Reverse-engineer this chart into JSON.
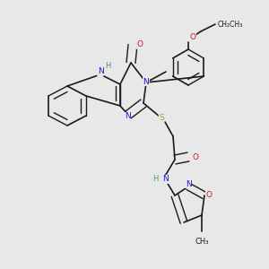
{
  "bg": "#e8e8e8",
  "C": "#1a1a1a",
  "N": "#1a1acc",
  "O": "#cc1a1a",
  "S": "#aaaa00",
  "H": "#4a9090",
  "bond": "#1a1a1a",
  "lw": 1.2,
  "dlw": 1.0,
  "doff": 0.055,
  "fs": 6.5
}
